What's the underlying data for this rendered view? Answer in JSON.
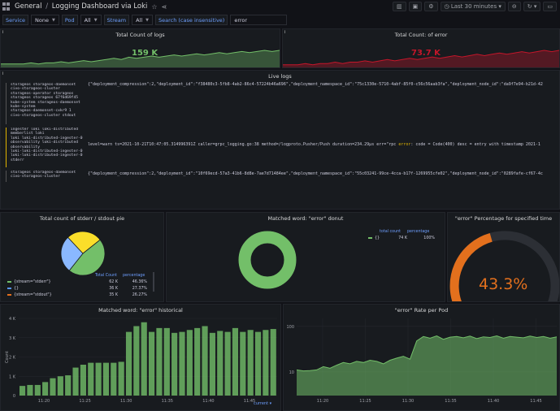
{
  "header": {
    "breadcrumb_root": "General",
    "breadcrumb_sep": "/",
    "dashboard_title": "Logging Dashboard via Loki",
    "time_range": "Last 30 minutes"
  },
  "variables": {
    "service_label": "Service",
    "service_value": "None",
    "pod_label": "Pod",
    "pod_value": "All",
    "stream_label": "Stream",
    "stream_value": "All",
    "search_label": "Search (case insensitive)",
    "search_value": "error"
  },
  "panels": {
    "total_logs": {
      "title": "Total Count of logs",
      "value": "159 K",
      "color": "#73bf69"
    },
    "total_error": {
      "title": "Total Count: of error",
      "value": "73.7 K",
      "color": "#c4162a"
    },
    "live_logs": {
      "title": "Live logs",
      "rows": [
        {
          "level": "none",
          "labels": "storageos storageos-daemonset\ncivo-storageos-cluster\nstorageos-operator storageos\nstorageos storageos 67f6d69f45\nkube-system storageos-daemonset\nkube-system\nstorageos-daemonset-cxkr9 1\ncivo-storageos-cluster stdout",
          "message": "{\"deployment_compression\":2,\"deployment_id\":\"f38480c3-5fb8-4ab2-86c4-57224b46a696\",\"deployment_namespace_id\":\"75c1330e-5710-4abf-85f0-c56c56aab3fa\",\"deployment_node_id\":\"da9f7e94-b21d-42"
        },
        {
          "level": "warn",
          "labels": "ingester loki loki-distributed\nmemberlist loki\nloki loki-distributed-ingester-0\nobservability loki-distributed\nobservability\nloki-loki-distributed-ingester-0\nloki-loki-distributed-ingester-0\nstderr",
          "message_pre": "level=warn ts=2021-10-21T10:47:05.314996391Z caller=grpc_logging.go:38 method=/logproto.Pusher/Push duration=234.29µs err=\"rpc ",
          "message_hl": "error",
          "message_post": ": code = Code(400) desc = entry with timestamp 2021-1"
        },
        {
          "level": "none",
          "labels": "storageos storageos-daemonset\ncivo-storageos-cluster",
          "message": "{\"deployment_compression\":2,\"deployment_id\":\"10f69ecd-57a3-41b6-8d8e-7ae7d71484ee\",\"deployment_namespace_id\":\"55c03241-99ce-4cca-b17f-1269955cfe02\",\"deployment_node_id\":\"0289fafe-cf67-4c"
        }
      ]
    },
    "pie": {
      "title": "Total count of stderr / stdout pie",
      "col_total": "Total Count",
      "col_pct": "percentage",
      "rows": [
        {
          "name": "{stream=\"stderr\"}",
          "count": "62 K",
          "pct": "46.36%",
          "color": "#73bf69"
        },
        {
          "name": "{}",
          "count": "36 K",
          "pct": "27.37%",
          "color": "#5794f2"
        },
        {
          "name": "{stream=\"stdout\"}",
          "count": "35 K",
          "pct": "26.27%",
          "color": "#e3701d"
        }
      ],
      "slices": [
        {
          "fraction": 0.4636,
          "color": "#73bf69"
        },
        {
          "fraction": 0.2737,
          "color": "#8ab8ff"
        },
        {
          "fraction": 0.2627,
          "color": "#fade2a"
        }
      ]
    },
    "donut": {
      "title": "Matched word: \"error\" donut",
      "col_total": "total count",
      "col_pct": "percentage",
      "row_name": "{}",
      "row_count": "74 K",
      "row_pct": "100%",
      "color": "#73bf69"
    },
    "gauge": {
      "title": "\"error\" Percentage for specified time",
      "value_text": "43.3%",
      "fraction": 0.433,
      "color": "#e3701d"
    },
    "historical": {
      "title": "Matched word: \"error\" historical",
      "legend_label": "current"
    },
    "rate": {
      "title": "\"error\" Rate per Pod"
    }
  },
  "chart_data": [
    {
      "type": "bar",
      "title": "Matched word: \"error\" historical",
      "ylabel": "Count",
      "ylim": [
        0,
        4000
      ],
      "yticks": [
        "0",
        "1 K",
        "2 K",
        "3 K",
        "4 K"
      ],
      "xticks": [
        "11:20",
        "11:25",
        "11:30",
        "11:35",
        "11:40",
        "11:45"
      ],
      "values": [
        500,
        550,
        550,
        700,
        900,
        1000,
        1050,
        1450,
        1600,
        1700,
        1700,
        1700,
        1700,
        1750,
        3300,
        3600,
        3800,
        3300,
        3500,
        3500,
        3250,
        3300,
        3400,
        3500,
        3600,
        3250,
        3350,
        3300,
        3500,
        3300,
        3400,
        3300,
        3400,
        3450
      ],
      "legend": "current",
      "color": "#73bf69"
    },
    {
      "type": "area",
      "title": "\"error\" Rate per Pod",
      "yscale": "log",
      "yticks": [
        "10",
        "100"
      ],
      "xticks": [
        "11:20",
        "11:25",
        "11:30",
        "11:35",
        "11:40",
        "11:45"
      ],
      "values": [
        11,
        10.5,
        10.6,
        11,
        13,
        12,
        14,
        16,
        15,
        17,
        16,
        18,
        17,
        15,
        18,
        20,
        22,
        19,
        48,
        60,
        55,
        62,
        52,
        58,
        60,
        56,
        61,
        54,
        59,
        57,
        62,
        55,
        60,
        58,
        56,
        61,
        57,
        60,
        55,
        59
      ],
      "color": "#73bf69"
    },
    {
      "type": "area",
      "title": "Total Count of logs",
      "values": [
        3,
        3,
        3,
        3,
        4,
        3,
        4,
        4,
        5,
        4,
        5,
        6,
        5,
        6,
        7,
        8,
        7,
        9,
        8,
        9,
        10,
        9,
        10,
        11,
        10,
        11,
        12,
        11,
        12,
        13,
        12,
        13,
        14,
        13,
        14,
        15,
        14,
        15
      ],
      "color": "#73bf69"
    },
    {
      "type": "area",
      "title": "Total Count: of error",
      "values": [
        2,
        2,
        2,
        3,
        2,
        3,
        3,
        4,
        3,
        4,
        4,
        5,
        4,
        5,
        6,
        5,
        6,
        7,
        6,
        7,
        8,
        7,
        8,
        9,
        8,
        9,
        10,
        9,
        10,
        11,
        10,
        11,
        12,
        11,
        12,
        13,
        12,
        13
      ],
      "color": "#c4162a"
    }
  ]
}
